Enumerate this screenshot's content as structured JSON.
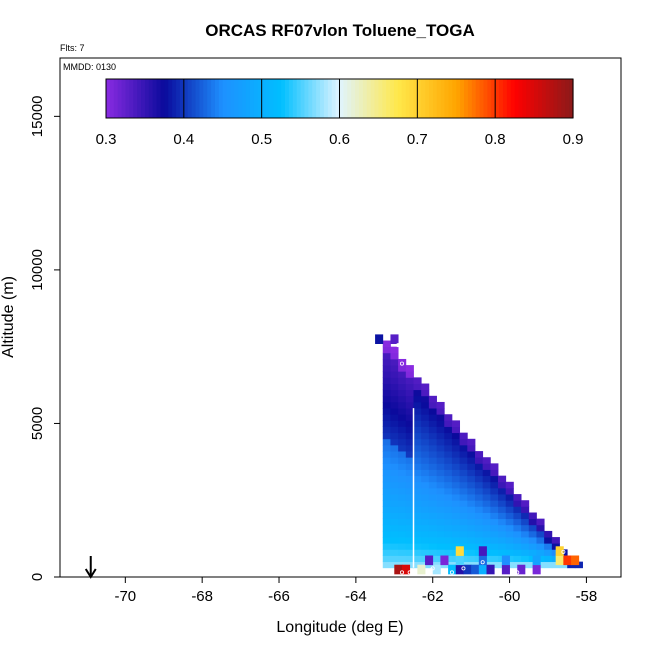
{
  "chart_data": {
    "type": "heatmap",
    "title": "ORCAS RF07vlon Toluene_TOGA",
    "corner_note": "Flts: 7",
    "panel_note": "MMDD: 0130",
    "xlabel": "Longitude (deg E)",
    "ylabel": "Altitude (m)",
    "xlim": [
      -71.7,
      -57.1
    ],
    "ylim": [
      0,
      16900
    ],
    "x_ticks": [
      -70,
      -68,
      -66,
      -64,
      -62,
      -60,
      -58
    ],
    "x_tick_labels": [
      "-70",
      "-68",
      "-66",
      "-64",
      "-62",
      "-60",
      "-58"
    ],
    "y_ticks": [
      0,
      5000,
      10000,
      15000
    ],
    "y_tick_labels": [
      "0",
      "5000",
      "10000",
      "15000"
    ],
    "colorbar": {
      "range": [
        0.3,
        0.9
      ],
      "ticks": [
        0.3,
        0.4,
        0.5,
        0.6,
        0.7,
        0.8,
        0.9
      ],
      "tick_labels": [
        "0.3",
        "0.4",
        "0.5",
        "0.6",
        "0.7",
        "0.8",
        "0.9"
      ],
      "colors": [
        "#8a2be2",
        "#0a0a9c",
        "#1e90ff",
        "#00bfff",
        "#e0f4ff",
        "#ffe84a",
        "#ffa500",
        "#ff0000",
        "#8b1a1a"
      ]
    },
    "arrow_longitude": -70.9,
    "flight_track": {
      "lon_start": -62.5,
      "lon_end": -62.5,
      "alt_bottom": 300,
      "alt_top": 5500
    },
    "curtain": {
      "lon_start": -63.2,
      "lon_end": -58.2,
      "alt_bottom": 300,
      "alt_top_start": 7600,
      "alt_top_end": 300,
      "lon_step": 0.2,
      "alt_step": 200,
      "value_top": 0.36,
      "value_bottom": 0.57,
      "value_near_top_edge": 0.42
    },
    "low_level_cells": [
      {
        "lon": -62.9,
        "alt": 100,
        "value": 0.88
      },
      {
        "lon": -62.7,
        "alt": 100,
        "value": 0.85
      },
      {
        "lon": -62.3,
        "alt": 100,
        "value": 0.62
      },
      {
        "lon": -61.9,
        "alt": 100,
        "value": 0.58
      },
      {
        "lon": -61.5,
        "alt": 100,
        "value": 0.52
      },
      {
        "lon": -61.3,
        "alt": 100,
        "value": 0.36
      },
      {
        "lon": -61.1,
        "alt": 100,
        "value": 0.4
      },
      {
        "lon": -60.9,
        "alt": 100,
        "value": 0.42
      },
      {
        "lon": -60.7,
        "alt": 100,
        "value": 0.5
      },
      {
        "lon": -60.5,
        "alt": 100,
        "value": 0.35
      },
      {
        "lon": -60.1,
        "alt": 100,
        "value": 0.33
      },
      {
        "lon": -59.7,
        "alt": 100,
        "value": 0.32
      },
      {
        "lon": -59.3,
        "alt": 100,
        "value": 0.31
      },
      {
        "lon": -62.1,
        "alt": 400,
        "value": 0.33
      },
      {
        "lon": -61.7,
        "alt": 400,
        "value": 0.31
      },
      {
        "lon": -61.3,
        "alt": 400,
        "value": 0.55
      },
      {
        "lon": -60.7,
        "alt": 400,
        "value": 0.43
      },
      {
        "lon": -60.1,
        "alt": 400,
        "value": 0.45
      },
      {
        "lon": -59.3,
        "alt": 400,
        "value": 0.48
      },
      {
        "lon": -58.7,
        "alt": 400,
        "value": 0.66
      },
      {
        "lon": -58.5,
        "alt": 400,
        "value": 0.8
      },
      {
        "lon": -58.3,
        "alt": 400,
        "value": 0.78
      },
      {
        "lon": -61.3,
        "alt": 700,
        "value": 0.69
      },
      {
        "lon": -60.7,
        "alt": 700,
        "value": 0.34
      },
      {
        "lon": -58.7,
        "alt": 700,
        "value": 0.7
      },
      {
        "lon": -63.0,
        "alt": 7600,
        "value": 0.33
      },
      {
        "lon": -63.4,
        "alt": 7600,
        "value": 0.38
      }
    ],
    "sample_points": [
      {
        "lon": -62.9,
        "alt": 7550
      },
      {
        "lon": -62.8,
        "alt": 6950
      },
      {
        "lon": -62.8,
        "alt": 150
      },
      {
        "lon": -62.6,
        "alt": 150
      },
      {
        "lon": -62.0,
        "alt": 280
      },
      {
        "lon": -61.5,
        "alt": 150
      },
      {
        "lon": -61.2,
        "alt": 280
      },
      {
        "lon": -60.7,
        "alt": 480
      },
      {
        "lon": -60.3,
        "alt": 150
      },
      {
        "lon": -59.8,
        "alt": 150
      },
      {
        "lon": -59.1,
        "alt": 150
      },
      {
        "lon": -58.8,
        "alt": 1800
      },
      {
        "lon": -58.6,
        "alt": 820
      }
    ]
  }
}
